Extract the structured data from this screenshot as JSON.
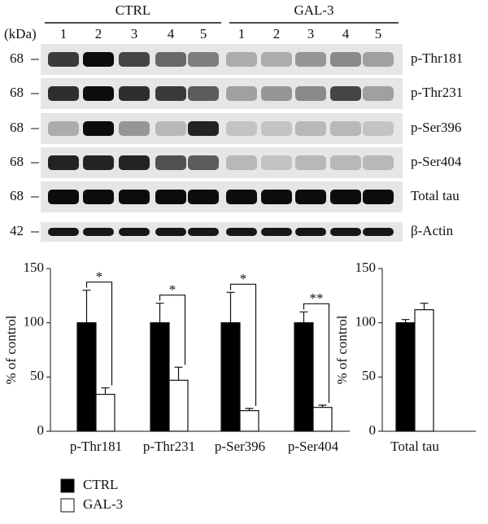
{
  "blot": {
    "groups": [
      "CTRL",
      "GAL-3"
    ],
    "lanes": [
      [
        "1",
        "2",
        "3",
        "4",
        "5"
      ],
      [
        "1",
        "2",
        "3",
        "4",
        "5"
      ]
    ],
    "kda_header": "(kDa)",
    "rows": [
      {
        "kda": "68",
        "label": "p-Thr181"
      },
      {
        "kda": "68",
        "label": "p-Thr231"
      },
      {
        "kda": "68",
        "label": "p-Ser396"
      },
      {
        "kda": "68",
        "label": "p-Ser404"
      },
      {
        "kda": "68",
        "label": "Total tau"
      },
      {
        "kda": "42",
        "label": "β-Actin"
      }
    ]
  },
  "legend": [
    "CTRL",
    "GAL-3"
  ],
  "chart_data": [
    {
      "type": "bar",
      "y_label": "% of control",
      "categories": [
        "p-Thr181",
        "p-Thr231",
        "p-Ser396",
        "p-Ser404"
      ],
      "series": [
        {
          "color": "#000000",
          "values": [
            100,
            100,
            100,
            100
          ],
          "errors": [
            30,
            18,
            28,
            10
          ]
        },
        {
          "color": "#ffffff",
          "values": [
            34,
            47,
            19,
            22
          ],
          "errors": [
            6,
            12,
            2,
            2
          ]
        }
      ],
      "significance": [
        "*",
        "*",
        "*",
        "**"
      ],
      "ylim": [
        0,
        150
      ],
      "yticks": [
        0,
        50,
        100,
        150
      ]
    },
    {
      "type": "bar",
      "y_label": "% of control",
      "categories": [
        "Total tau"
      ],
      "series": [
        {
          "color": "#000000",
          "values": [
            100
          ],
          "errors": [
            3
          ]
        },
        {
          "color": "#ffffff",
          "values": [
            112
          ],
          "errors": [
            6
          ]
        }
      ],
      "ylim": [
        0,
        150
      ],
      "yticks": [
        0,
        50,
        100,
        150
      ]
    }
  ]
}
